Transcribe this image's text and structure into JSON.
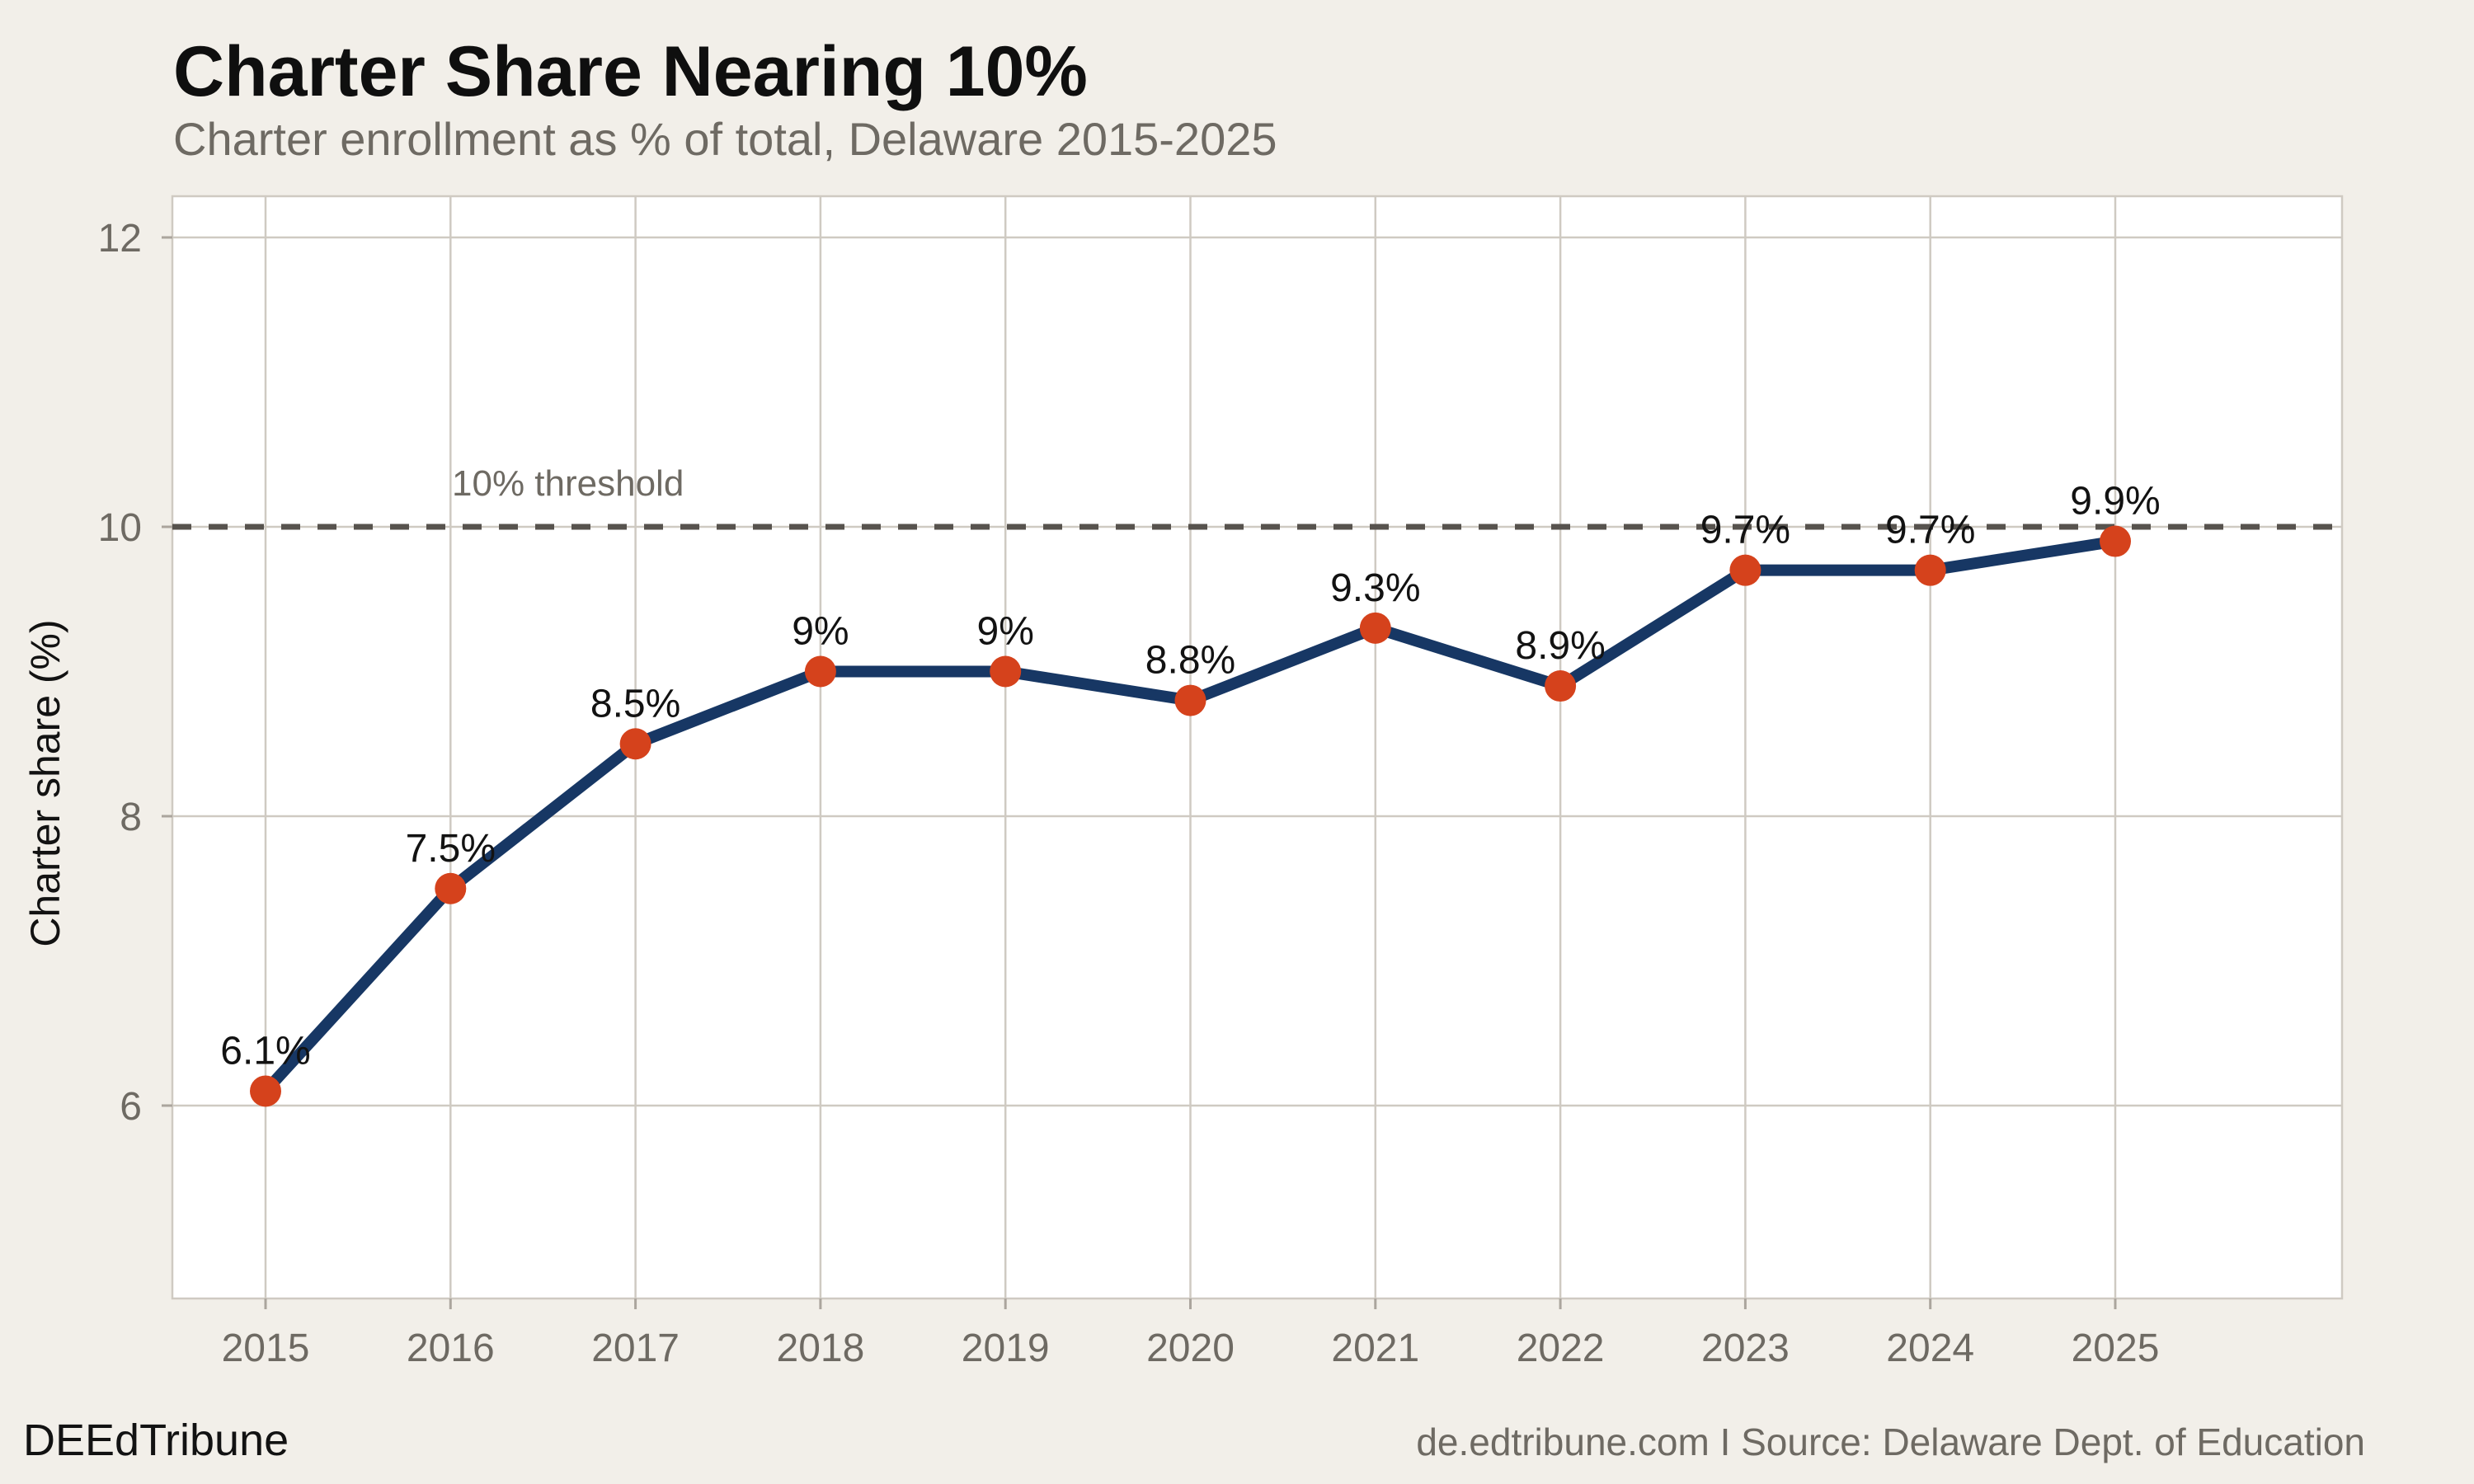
{
  "header": {
    "title": "Charter Share Nearing 10%",
    "subtitle": "Charter enrollment as % of total, Delaware 2015-2025"
  },
  "chart_data": {
    "type": "line",
    "x": [
      2015,
      2016,
      2017,
      2018,
      2019,
      2020,
      2021,
      2022,
      2023,
      2024,
      2025
    ],
    "values": [
      6.1,
      7.5,
      8.5,
      9.0,
      9.0,
      8.8,
      9.3,
      8.9,
      9.7,
      9.7,
      9.9
    ],
    "point_labels": [
      "6.1%",
      "7.5%",
      "8.5%",
      "9%",
      "9%",
      "8.8%",
      "9.3%",
      "8.9%",
      "9.7%",
      "9.7%",
      "9.9%"
    ],
    "title": "Charter Share Nearing 10%",
    "subtitle": "Charter enrollment as % of total, Delaware 2015-2025",
    "xlabel": "",
    "ylabel": "Charter share (%)",
    "yticks": [
      6,
      8,
      10,
      12
    ],
    "ytick_labels": [
      "6",
      "8",
      "10",
      "12"
    ],
    "xtick_labels": [
      "2015",
      "2016",
      "2017",
      "2018",
      "2019",
      "2020",
      "2021",
      "2022",
      "2023",
      "2024",
      "2025"
    ],
    "ylim": [
      4.7,
      12.3
    ],
    "grid": true,
    "legend": "none",
    "threshold": {
      "value": 10,
      "label": "10% threshold"
    },
    "colors": {
      "page_bg": "#f2efe9",
      "panel_bg": "#ffffff",
      "grid": "#cfcac2",
      "tick": "#aba59d",
      "line": "#173764",
      "point": "#d5421c",
      "threshold_line": "#57534e",
      "text_dark": "#121212",
      "text_muted": "#6e6a63"
    }
  },
  "footer": {
    "brand": "DEEdTribune",
    "source": "de.edtribune.com I Source: Delaware Dept. of Education"
  }
}
